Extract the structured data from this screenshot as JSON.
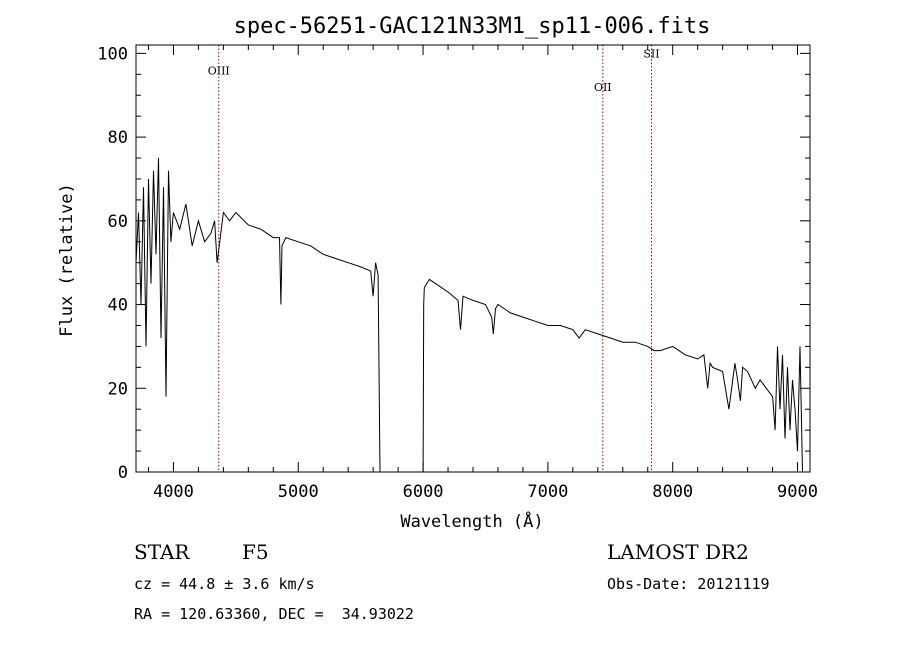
{
  "chart_data": {
    "type": "line",
    "title": "spec-56251-GAC121N33M1_sp11-006.fits",
    "xlabel": "Wavelength (Å)",
    "ylabel": "Flux (relative)",
    "xlim": [
      3700,
      9100
    ],
    "ylim": [
      0,
      102
    ],
    "x_ticks": [
      4000,
      5000,
      6000,
      7000,
      8000,
      9000
    ],
    "y_ticks": [
      0,
      20,
      40,
      60,
      80,
      100
    ],
    "grid": false,
    "series": [
      {
        "color": "#000000",
        "x": [
          3700,
          3720,
          3740,
          3760,
          3780,
          3800,
          3820,
          3840,
          3860,
          3880,
          3900,
          3920,
          3940,
          3960,
          3980,
          4000,
          4050,
          4100,
          4150,
          4200,
          4250,
          4300,
          4330,
          4350,
          4400,
          4450,
          4500,
          4600,
          4700,
          4800,
          4850,
          4861,
          4870,
          4900,
          5000,
          5100,
          5200,
          5300,
          5400,
          5500,
          5580,
          5600,
          5620,
          5640,
          5655,
          5660,
          6000,
          6005,
          6010,
          6050,
          6100,
          6200,
          6280,
          6300,
          6320,
          6400,
          6500,
          6550,
          6563,
          6580,
          6600,
          6700,
          6800,
          6900,
          7000,
          7100,
          7200,
          7250,
          7300,
          7400,
          7500,
          7600,
          7700,
          7800,
          7850,
          7900,
          8000,
          8100,
          8200,
          8250,
          8280,
          8300,
          8320,
          8400,
          8450,
          8498,
          8520,
          8542,
          8560,
          8600,
          8662,
          8700,
          8750,
          8800,
          8820,
          8840,
          8860,
          8880,
          8900,
          8920,
          8940,
          8960,
          8980,
          9000,
          9020,
          9040
        ],
        "y": [
          50,
          62,
          40,
          68,
          30,
          70,
          45,
          72,
          52,
          75,
          32,
          68,
          18,
          72,
          55,
          62,
          58,
          64,
          54,
          60,
          55,
          57,
          60,
          50,
          62,
          60,
          62,
          59,
          58,
          56,
          56,
          40,
          54,
          56,
          55,
          54,
          52,
          51,
          50,
          49,
          48,
          42,
          50,
          47,
          0,
          0,
          0,
          40,
          44,
          46,
          45,
          43,
          41,
          34,
          42,
          41,
          40,
          37,
          33,
          39,
          40,
          38,
          37,
          36,
          35,
          35,
          34,
          32,
          34,
          33,
          32,
          31,
          31,
          30,
          29,
          29,
          30,
          28,
          27,
          28,
          20,
          26,
          25,
          24,
          15,
          26,
          22,
          17,
          25,
          24,
          20,
          22,
          20,
          18,
          10,
          30,
          15,
          28,
          8,
          25,
          10,
          22,
          15,
          5,
          30,
          0
        ]
      }
    ],
    "vertical_lines": [
      {
        "x": 4363,
        "label": "OIII",
        "label_y": 95
      },
      {
        "x": 7440,
        "label": "OII",
        "label_y": 91
      },
      {
        "x": 7830,
        "label": "SII",
        "label_y": 99
      }
    ]
  },
  "info": {
    "object_class": "STAR",
    "subclass": "F5",
    "survey": "LAMOST DR2",
    "redshift": "cz = 44.8 ± 3.6 km/s",
    "obs_date": "Obs-Date: 20121119",
    "coords": "RA = 120.63360, DEC =  34.93022"
  }
}
